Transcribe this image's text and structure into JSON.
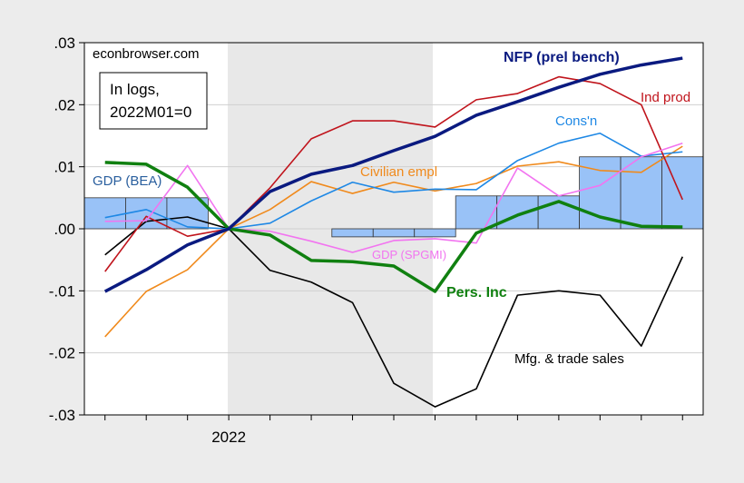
{
  "chart_data": {
    "type": "line",
    "categories": [
      null,
      null,
      null,
      "2022",
      null,
      null,
      null,
      null,
      null,
      null,
      null,
      null,
      null,
      null,
      null
    ],
    "ylim": [
      -0.03,
      0.03
    ],
    "yticks": [
      {
        "value": -0.03,
        "label": "-.03"
      },
      {
        "value": -0.02,
        "label": "-.02"
      },
      {
        "value": -0.01,
        "label": "-.01"
      },
      {
        "value": 0,
        "label": ".00"
      },
      {
        "value": 0.01,
        "label": ".01"
      },
      {
        "value": 0.02,
        "label": ".02"
      },
      {
        "value": 0.03,
        "label": ".03"
      }
    ],
    "grid": true,
    "annotations": [
      "econbrowser.com",
      "In logs,",
      "2022M01=0"
    ],
    "series": [
      {
        "name": "GDP (BEA)",
        "kind": "bar",
        "color": "#99c2f7",
        "values": [
          0.005,
          0.005,
          0.005,
          0,
          0,
          0,
          -0.0013,
          -0.0013,
          -0.0013,
          0.0053,
          0.0053,
          0.0053,
          0.0116,
          0.0116,
          0.0116
        ]
      },
      {
        "name": "Mfg. & trade sales",
        "color": "#000000",
        "values": [
          -0.0042,
          0.0012,
          0.0019,
          0,
          -0.0067,
          -0.0086,
          -0.0119,
          -0.0249,
          -0.0287,
          -0.0258,
          -0.0107,
          -0.01,
          -0.0107,
          -0.0189,
          -0.0045
        ]
      },
      {
        "name": "Civilian empl",
        "color": "#f08a1c",
        "values": [
          -0.0174,
          -0.0101,
          -0.0066,
          0,
          0.0031,
          0.0076,
          0.0057,
          0.0075,
          0.0061,
          0.0073,
          0.0101,
          0.0108,
          0.0094,
          0.0091,
          0.0133
        ]
      },
      {
        "name": "Cons'n",
        "color": "#1e88e5",
        "values": [
          0.0018,
          0.0031,
          0.0003,
          0,
          0.0009,
          0.0045,
          0.0075,
          0.0059,
          0.0064,
          0.0063,
          0.011,
          0.0138,
          0.0154,
          0.0117,
          0.0124
        ]
      },
      {
        "name": "Ind prod",
        "color": "#c0141c",
        "values": [
          -0.0069,
          0.002,
          -0.0012,
          0,
          0.0066,
          0.0145,
          0.0174,
          0.0174,
          0.0164,
          0.0208,
          0.0218,
          0.0245,
          0.0234,
          0.02,
          0.0047
        ]
      },
      {
        "name": "GDP (SPGMI)",
        "color": "#f274f0",
        "values": [
          0.0012,
          0.0013,
          0.0102,
          0,
          -0.0004,
          -0.002,
          -0.0038,
          -0.0019,
          -0.0016,
          -0.0023,
          0.0098,
          0.0053,
          0.007,
          0.0116,
          0.0138
        ]
      },
      {
        "name": "Pers. Inc",
        "color": "#108010",
        "bold": true,
        "values": [
          0.0107,
          0.0104,
          0.0067,
          0,
          -0.001,
          -0.0051,
          -0.0053,
          -0.006,
          -0.0101,
          -0.0007,
          0.0022,
          0.0044,
          0.0019,
          0.0004,
          0.0003
        ]
      },
      {
        "name": "NFP (prel bench)",
        "color": "#0a1a80",
        "bold": true,
        "values": [
          -0.0101,
          -0.0066,
          -0.0026,
          0,
          0.006,
          0.0088,
          0.0102,
          0.0126,
          0.0149,
          0.0183,
          0.0205,
          0.0228,
          0.0249,
          0.0264,
          0.0275
        ]
      }
    ]
  }
}
